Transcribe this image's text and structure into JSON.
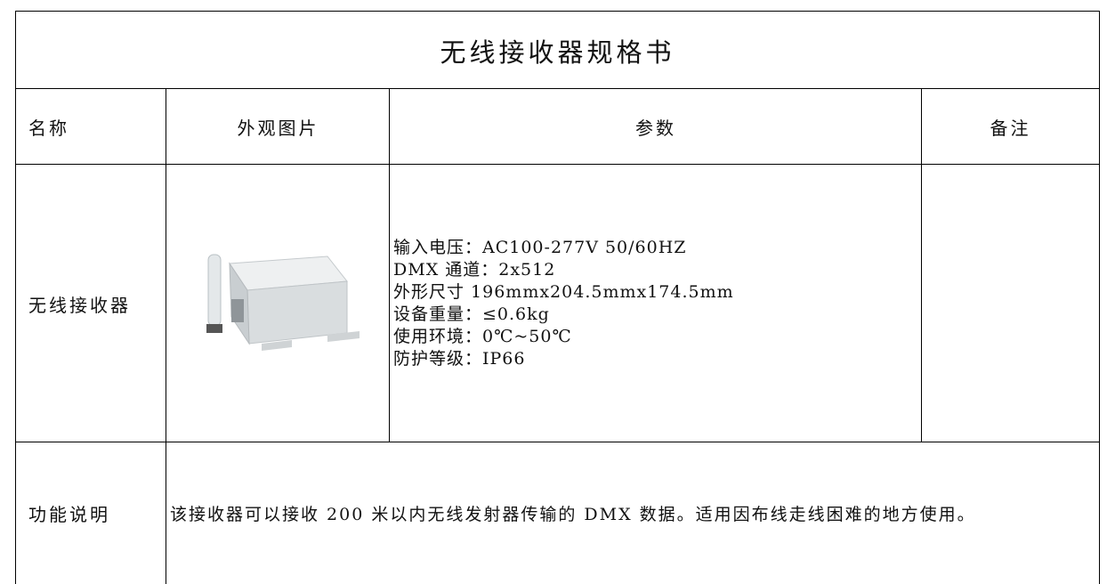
{
  "title": "无线接收器规格书",
  "table": {
    "header": [
      "名称",
      "外观图片",
      "参数",
      "备注"
    ],
    "row": {
      "name": "无线接收器",
      "params": [
        "输入电压：AC100-277V 50/60HZ",
        "DMX 通道：2x512",
        "外形尺寸 196mmx204.5mmx174.5mm",
        "设备重量：≤0.6kg",
        "使用环境：0℃~50℃",
        "防护等级：IP66"
      ]
    },
    "function": {
      "label": "功能说明",
      "text": "该接收器可以接收 200 米以内无线发射器传输的 DMX 数据。适用因布线走线困难的地方使用。"
    }
  }
}
